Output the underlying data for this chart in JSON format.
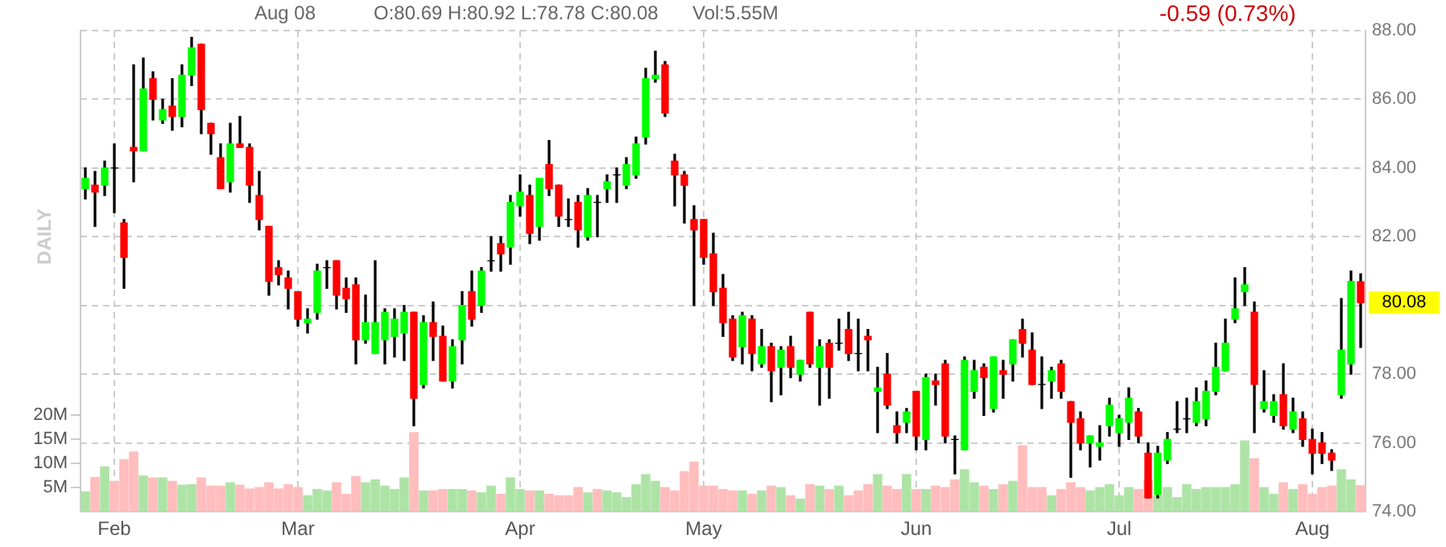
{
  "chart_data": {
    "type": "candlestick",
    "annotations": [
      "Aug 08",
      "O:80.69 H:80.92 L:78.78 C:80.08",
      "Vol:5.55M",
      "-0.59 (0.73%)",
      "DAILY",
      {
        "text": "80.08",
        "y": 80.08
      }
    ],
    "categories": [
      null,
      null,
      null,
      "Feb",
      null,
      null,
      null,
      null,
      null,
      null,
      null,
      null,
      null,
      null,
      null,
      null,
      null,
      null,
      null,
      null,
      null,
      null,
      "Mar",
      null,
      null,
      null,
      null,
      null,
      null,
      null,
      null,
      null,
      null,
      null,
      null,
      null,
      null,
      null,
      null,
      null,
      null,
      null,
      null,
      null,
      null,
      "Apr",
      null,
      null,
      null,
      null,
      null,
      null,
      null,
      null,
      null,
      null,
      null,
      null,
      null,
      null,
      null,
      null,
      null,
      null,
      "May",
      null,
      null,
      null,
      null,
      null,
      null,
      null,
      null,
      null,
      null,
      null,
      null,
      null,
      null,
      null,
      null,
      null,
      null,
      null,
      null,
      null,
      "Jun",
      null,
      null,
      null,
      null,
      null,
      null,
      null,
      null,
      null,
      null,
      null,
      null,
      null,
      null,
      null,
      null,
      null,
      null,
      null,
      null,
      "Jul",
      null,
      null,
      null,
      null,
      null,
      null,
      null,
      null,
      null,
      null,
      null,
      null,
      null,
      null,
      null,
      null,
      null,
      null,
      null,
      "Aug",
      null,
      null,
      null,
      null,
      null
    ],
    "series": [
      {
        "ohlc": [
          [
            83.4,
            84.0,
            83.1,
            83.7
          ],
          [
            83.5,
            83.9,
            82.3,
            83.3
          ],
          [
            83.5,
            84.2,
            83.2,
            84.0
          ],
          [
            84.0,
            84.7,
            82.7,
            84.0
          ],
          [
            82.4,
            82.5,
            80.5,
            81.4
          ],
          [
            84.6,
            87.0,
            83.6,
            84.5
          ],
          [
            84.5,
            87.2,
            84.5,
            86.3
          ],
          [
            86.6,
            86.8,
            85.4,
            86.0
          ],
          [
            85.4,
            86.0,
            85.3,
            85.7
          ],
          [
            85.8,
            86.6,
            85.1,
            85.5
          ],
          [
            85.5,
            87.0,
            85.2,
            86.7
          ],
          [
            86.7,
            87.8,
            86.4,
            87.5
          ],
          [
            87.6,
            87.6,
            85.0,
            85.7
          ],
          [
            85.3,
            85.3,
            84.4,
            85.0
          ],
          [
            84.3,
            84.7,
            83.4,
            83.4
          ],
          [
            83.6,
            85.3,
            83.3,
            84.7
          ],
          [
            84.7,
            85.5,
            84.6,
            84.6
          ],
          [
            84.6,
            84.7,
            83.0,
            83.5
          ],
          [
            83.2,
            83.9,
            82.2,
            82.5
          ],
          [
            82.3,
            82.3,
            80.3,
            80.7
          ],
          [
            81.1,
            81.3,
            80.6,
            80.9
          ],
          [
            80.8,
            81.0,
            79.9,
            80.5
          ],
          [
            80.4,
            80.4,
            79.4,
            79.6
          ],
          [
            79.5,
            79.9,
            79.2,
            79.6
          ],
          [
            79.8,
            81.2,
            79.6,
            81.0
          ],
          [
            81.1,
            81.3,
            80.5,
            81.1
          ],
          [
            81.3,
            81.3,
            79.9,
            80.3
          ],
          [
            80.5,
            80.8,
            79.8,
            80.2
          ],
          [
            80.6,
            80.8,
            78.3,
            79.0
          ],
          [
            79.0,
            80.3,
            78.9,
            79.5
          ],
          [
            78.6,
            81.3,
            78.6,
            79.5
          ],
          [
            79.0,
            79.9,
            78.3,
            79.8
          ],
          [
            79.1,
            79.9,
            78.5,
            79.6
          ],
          [
            79.2,
            80.0,
            78.4,
            79.8
          ],
          [
            79.8,
            79.8,
            76.5,
            77.3
          ],
          [
            77.7,
            79.7,
            77.6,
            79.5
          ],
          [
            79.5,
            80.1,
            78.4,
            79.1
          ],
          [
            79.1,
            79.4,
            77.8,
            77.8
          ],
          [
            77.8,
            79.0,
            77.6,
            78.8
          ],
          [
            79.0,
            80.4,
            78.3,
            80.0
          ],
          [
            80.4,
            81.0,
            79.4,
            79.6
          ],
          [
            80.0,
            81.1,
            79.8,
            81.0
          ],
          [
            81.3,
            82.0,
            81.0,
            81.3
          ],
          [
            81.8,
            82.0,
            81.0,
            81.5
          ],
          [
            81.7,
            83.2,
            81.2,
            83.0
          ],
          [
            82.9,
            83.8,
            82.6,
            83.3
          ],
          [
            83.2,
            83.5,
            81.8,
            82.1
          ],
          [
            82.3,
            83.7,
            81.9,
            83.7
          ],
          [
            84.1,
            84.8,
            83.2,
            83.4
          ],
          [
            83.5,
            83.5,
            82.3,
            82.6
          ],
          [
            82.5,
            83.1,
            82.3,
            82.5
          ],
          [
            83.0,
            83.2,
            81.7,
            82.2
          ],
          [
            82.0,
            83.4,
            81.9,
            83.2
          ],
          [
            83.0,
            83.2,
            82.0,
            83.0
          ],
          [
            83.4,
            83.8,
            83.0,
            83.6
          ],
          [
            83.8,
            84.0,
            83.0,
            83.8
          ],
          [
            83.5,
            84.3,
            83.4,
            84.1
          ],
          [
            83.8,
            84.9,
            83.7,
            84.7
          ],
          [
            84.9,
            86.9,
            84.7,
            86.6
          ],
          [
            86.6,
            87.4,
            86.5,
            86.7
          ],
          [
            87.0,
            87.1,
            85.5,
            85.6
          ],
          [
            84.2,
            84.4,
            82.9,
            83.8
          ],
          [
            83.8,
            83.9,
            82.4,
            83.5
          ],
          [
            82.5,
            82.9,
            80.0,
            82.2
          ],
          [
            82.5,
            82.5,
            81.2,
            81.4
          ],
          [
            81.5,
            82.1,
            80.0,
            80.4
          ],
          [
            80.5,
            80.9,
            79.1,
            79.5
          ],
          [
            79.6,
            79.7,
            78.4,
            78.5
          ],
          [
            78.8,
            79.8,
            78.3,
            79.7
          ],
          [
            79.6,
            79.7,
            78.1,
            78.6
          ],
          [
            78.3,
            79.3,
            78.2,
            78.8
          ],
          [
            78.8,
            78.9,
            77.2,
            78.1
          ],
          [
            78.2,
            78.8,
            77.4,
            78.7
          ],
          [
            78.8,
            79.1,
            77.9,
            78.2
          ],
          [
            78.0,
            78.4,
            77.8,
            78.4
          ],
          [
            79.8,
            79.8,
            78.2,
            78.3
          ],
          [
            78.2,
            79.0,
            77.1,
            78.8
          ],
          [
            78.9,
            79.0,
            77.3,
            78.2
          ],
          [
            78.9,
            79.6,
            78.7,
            78.9
          ],
          [
            79.3,
            79.8,
            78.4,
            78.6
          ],
          [
            78.6,
            79.6,
            78.1,
            78.6
          ],
          [
            79.1,
            79.3,
            78.1,
            79.0
          ],
          [
            77.5,
            78.2,
            76.3,
            77.6
          ],
          [
            78.0,
            78.6,
            77.0,
            77.1
          ],
          [
            76.5,
            76.9,
            76.0,
            76.3
          ],
          [
            76.6,
            77.0,
            76.3,
            76.9
          ],
          [
            77.5,
            77.5,
            75.8,
            76.2
          ],
          [
            76.1,
            78.0,
            75.8,
            77.9
          ],
          [
            77.8,
            78.0,
            77.1,
            77.7
          ],
          [
            78.3,
            78.4,
            76.0,
            76.2
          ],
          [
            76.1,
            76.2,
            75.1,
            76.1
          ],
          [
            75.8,
            78.5,
            75.8,
            78.4
          ],
          [
            77.5,
            78.4,
            77.3,
            78.1
          ],
          [
            78.2,
            78.3,
            76.8,
            77.9
          ],
          [
            77.0,
            78.5,
            76.9,
            78.5
          ],
          [
            78.1,
            78.4,
            77.3,
            78.0
          ],
          [
            78.3,
            79.0,
            77.8,
            79.0
          ],
          [
            79.3,
            79.6,
            78.5,
            78.9
          ],
          [
            78.7,
            79.2,
            77.7,
            77.7
          ],
          [
            77.7,
            78.5,
            77.0,
            77.7
          ],
          [
            77.8,
            78.2,
            77.3,
            78.1
          ],
          [
            78.3,
            78.4,
            77.3,
            77.5
          ],
          [
            77.2,
            77.2,
            75.0,
            76.6
          ],
          [
            76.7,
            76.9,
            75.8,
            76.0
          ],
          [
            76.0,
            76.2,
            75.3,
            76.2
          ],
          [
            75.9,
            76.5,
            75.5,
            76.0
          ],
          [
            76.5,
            77.3,
            76.2,
            77.1
          ],
          [
            76.3,
            76.8,
            75.9,
            76.7
          ],
          [
            76.6,
            77.6,
            76.1,
            77.3
          ],
          [
            76.9,
            77.0,
            76.0,
            76.2
          ],
          [
            75.7,
            76.0,
            74.4,
            74.4
          ],
          [
            74.5,
            75.9,
            74.4,
            75.7
          ],
          [
            75.5,
            76.3,
            75.4,
            76.1
          ],
          [
            76.4,
            77.2,
            76.3,
            76.4
          ],
          [
            76.7,
            77.3,
            76.3,
            76.7
          ],
          [
            76.6,
            77.6,
            76.5,
            77.2
          ],
          [
            76.7,
            77.8,
            76.5,
            77.5
          ],
          [
            77.5,
            78.9,
            77.4,
            78.2
          ],
          [
            78.1,
            79.6,
            78.1,
            78.9
          ],
          [
            79.6,
            80.8,
            79.5,
            79.9
          ],
          [
            80.4,
            81.1,
            80.0,
            80.6
          ],
          [
            79.8,
            80.1,
            76.3,
            77.7
          ],
          [
            77.0,
            78.1,
            76.9,
            77.2
          ],
          [
            76.8,
            77.4,
            76.6,
            77.2
          ],
          [
            77.4,
            78.3,
            76.4,
            76.5
          ],
          [
            76.4,
            77.3,
            76.3,
            76.9
          ],
          [
            76.7,
            76.9,
            75.9,
            76.1
          ],
          [
            76.1,
            76.4,
            75.1,
            75.7
          ],
          [
            76.0,
            76.3,
            75.4,
            75.7
          ],
          [
            75.7,
            75.8,
            75.2,
            75.5
          ],
          [
            77.4,
            80.2,
            77.3,
            78.7
          ],
          [
            78.3,
            81.0,
            78.0,
            80.7
          ],
          [
            80.69,
            80.92,
            78.78,
            80.08
          ]
        ],
        "colors": [
          "#00ff00",
          "#ff0000",
          "#00ff00",
          "#000000",
          "#ff0000",
          "#ff0000",
          "#00ff00",
          "#ff0000",
          "#00ff00",
          "#ff0000",
          "#00ff00",
          "#00ff00",
          "#ff0000",
          "#ff0000",
          "#ff0000",
          "#00ff00",
          "#ff0000",
          "#ff0000",
          "#ff0000",
          "#ff0000",
          "#ff0000",
          "#ff0000",
          "#ff0000",
          "#00ff00",
          "#00ff00",
          "#000000",
          "#ff0000",
          "#ff0000",
          "#ff0000",
          "#00ff00",
          "#00ff00",
          "#00ff00",
          "#00ff00",
          "#00ff00",
          "#ff0000",
          "#00ff00",
          "#ff0000",
          "#ff0000",
          "#00ff00",
          "#00ff00",
          "#ff0000",
          "#00ff00",
          "#000000",
          "#ff0000",
          "#00ff00",
          "#00ff00",
          "#ff0000",
          "#00ff00",
          "#ff0000",
          "#ff0000",
          "#000000",
          "#ff0000",
          "#00ff00",
          "#000000",
          "#00ff00",
          "#000000",
          "#00ff00",
          "#00ff00",
          "#00ff00",
          "#00ff00",
          "#ff0000",
          "#ff0000",
          "#ff0000",
          "#ff0000",
          "#ff0000",
          "#ff0000",
          "#ff0000",
          "#ff0000",
          "#00ff00",
          "#ff0000",
          "#00ff00",
          "#ff0000",
          "#00ff00",
          "#ff0000",
          "#00ff00",
          "#ff0000",
          "#00ff00",
          "#ff0000",
          "#000000",
          "#ff0000",
          "#000000",
          "#ff0000",
          "#00ff00",
          "#ff0000",
          "#ff0000",
          "#00ff00",
          "#ff0000",
          "#00ff00",
          "#ff0000",
          "#ff0000",
          "#000000",
          "#00ff00",
          "#00ff00",
          "#ff0000",
          "#00ff00",
          "#ff0000",
          "#00ff00",
          "#ff0000",
          "#ff0000",
          "#000000",
          "#00ff00",
          "#ff0000",
          "#ff0000",
          "#ff0000",
          "#00ff00",
          "#00ff00",
          "#00ff00",
          "#00ff00",
          "#00ff00",
          "#ff0000",
          "#ff0000",
          "#00ff00",
          "#00ff00",
          "#000000",
          "#000000",
          "#00ff00",
          "#00ff00",
          "#00ff00",
          "#00ff00",
          "#00ff00",
          "#00ff00",
          "#ff0000",
          "#00ff00",
          "#00ff00",
          "#ff0000",
          "#00ff00",
          "#ff0000",
          "#ff0000",
          "#ff0000",
          "#ff0000",
          "#00ff00",
          "#00ff00",
          "#ff0000"
        ]
      },
      {
        "type": "bar",
        "axis": "y2",
        "values": [
          4.2,
          7.2,
          9.4,
          6.4,
          10.9,
          12.5,
          7.5,
          7.1,
          7.1,
          6.4,
          5.6,
          5.7,
          7.1,
          5.4,
          5.4,
          6.1,
          5.6,
          4.8,
          5.1,
          6.1,
          4.8,
          5.7,
          5.1,
          3.4,
          4.7,
          4.4,
          6.1,
          3.7,
          7.4,
          6.1,
          6.7,
          5.4,
          4.7,
          7.1,
          16.5,
          4.4,
          4.4,
          4.7,
          4.7,
          4.7,
          4.4,
          4.0,
          5.4,
          3.7,
          7.1,
          4.7,
          4.4,
          4.4,
          3.7,
          3.4,
          3.4,
          5.1,
          4.0,
          4.7,
          4.4,
          4.0,
          3.0,
          5.7,
          7.8,
          6.4,
          5.1,
          4.4,
          8.4,
          10.4,
          5.4,
          5.4,
          4.7,
          4.4,
          4.4,
          3.7,
          4.4,
          5.4,
          5.1,
          3.4,
          2.7,
          5.7,
          5.4,
          4.7,
          5.4,
          3.4,
          4.4,
          5.7,
          7.8,
          5.4,
          4.7,
          7.8,
          4.7,
          4.7,
          5.4,
          5.1,
          6.7,
          8.8,
          6.1,
          5.4,
          4.7,
          5.7,
          6.4,
          13.8,
          5.1,
          5.1,
          3.4,
          4.7,
          6.1,
          5.1,
          4.4,
          5.1,
          5.7,
          3.4,
          5.1,
          4.7,
          6.7,
          3.4,
          5.1,
          3.0,
          5.7,
          4.7,
          5.1,
          5.1,
          5.1,
          5.7,
          14.8,
          11.1,
          5.1,
          3.7,
          6.1,
          4.7,
          5.7,
          3.7,
          5.1,
          5.4,
          8.8,
          6.7,
          5.5
        ],
        "colors": [
          "#aee3a6",
          "#ffbdbd",
          "#aee3a6",
          "#ffbdbd",
          "#ffbdbd",
          "#ffbdbd",
          "#aee3a6",
          "#ffbdbd",
          "#aee3a6",
          "#ffbdbd",
          "#aee3a6",
          "#aee3a6",
          "#ffbdbd",
          "#ffbdbd",
          "#ffbdbd",
          "#aee3a6",
          "#ffbdbd",
          "#ffbdbd",
          "#ffbdbd",
          "#ffbdbd",
          "#ffbdbd",
          "#ffbdbd",
          "#ffbdbd",
          "#aee3a6",
          "#aee3a6",
          "#aee3a6",
          "#ffbdbd",
          "#ffbdbd",
          "#ffbdbd",
          "#aee3a6",
          "#aee3a6",
          "#aee3a6",
          "#aee3a6",
          "#aee3a6",
          "#ffbdbd",
          "#aee3a6",
          "#ffbdbd",
          "#ffbdbd",
          "#aee3a6",
          "#aee3a6",
          "#ffbdbd",
          "#aee3a6",
          "#aee3a6",
          "#ffbdbd",
          "#aee3a6",
          "#aee3a6",
          "#ffbdbd",
          "#aee3a6",
          "#ffbdbd",
          "#ffbdbd",
          "#ffbdbd",
          "#ffbdbd",
          "#aee3a6",
          "#ffbdbd",
          "#aee3a6",
          "#aee3a6",
          "#aee3a6",
          "#aee3a6",
          "#aee3a6",
          "#aee3a6",
          "#ffbdbd",
          "#ffbdbd",
          "#ffbdbd",
          "#ffbdbd",
          "#ffbdbd",
          "#ffbdbd",
          "#ffbdbd",
          "#ffbdbd",
          "#aee3a6",
          "#ffbdbd",
          "#aee3a6",
          "#ffbdbd",
          "#aee3a6",
          "#ffbdbd",
          "#aee3a6",
          "#ffbdbd",
          "#aee3a6",
          "#ffbdbd",
          "#aee3a6",
          "#ffbdbd",
          "#ffbdbd",
          "#ffbdbd",
          "#aee3a6",
          "#ffbdbd",
          "#ffbdbd",
          "#aee3a6",
          "#ffbdbd",
          "#aee3a6",
          "#ffbdbd",
          "#ffbdbd",
          "#ffbdbd",
          "#aee3a6",
          "#aee3a6",
          "#ffbdbd",
          "#aee3a6",
          "#ffbdbd",
          "#aee3a6",
          "#ffbdbd",
          "#ffbdbd",
          "#ffbdbd",
          "#aee3a6",
          "#ffbdbd",
          "#ffbdbd",
          "#ffbdbd",
          "#aee3a6",
          "#aee3a6",
          "#aee3a6",
          "#aee3a6",
          "#aee3a6",
          "#ffbdbd",
          "#ffbdbd",
          "#aee3a6",
          "#aee3a6",
          "#aee3a6",
          "#aee3a6",
          "#aee3a6",
          "#aee3a6",
          "#aee3a6",
          "#aee3a6",
          "#aee3a6",
          "#aee3a6",
          "#ffbdbd",
          "#aee3a6",
          "#aee3a6",
          "#ffbdbd",
          "#aee3a6",
          "#ffbdbd",
          "#ffbdbd",
          "#ffbdbd",
          "#ffbdbd",
          "#aee3a6",
          "#aee3a6",
          "#ffbdbd"
        ]
      }
    ],
    "ylim": [
      74,
      88
    ],
    "yticks": [
      {
        "value": 74,
        "label": "74.00"
      },
      {
        "value": 76,
        "label": "76.00"
      },
      {
        "value": 78,
        "label": "78.00"
      },
      {
        "value": 80,
        "label": null
      },
      {
        "value": 82,
        "label": "82.00"
      },
      {
        "value": 84,
        "label": "84.00"
      },
      {
        "value": 86,
        "label": "86.00"
      },
      {
        "value": 88,
        "label": "88.00"
      }
    ],
    "y2lim": [
      0,
      100
    ],
    "y2ticks": [
      {
        "value": 5,
        "label": "5M"
      },
      {
        "value": 10,
        "label": "10M"
      },
      {
        "value": 15,
        "label": "15M"
      },
      {
        "value": 20,
        "label": "20M"
      }
    ],
    "grid": true,
    "legend": false
  }
}
